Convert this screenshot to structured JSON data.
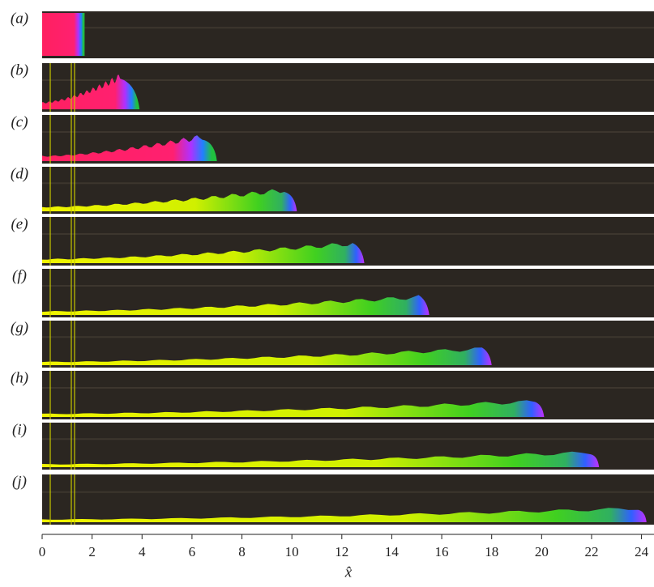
{
  "chart_data": {
    "type": "panels",
    "categories": [
      "(a)",
      "(b)",
      "(c)",
      "(d)",
      "(e)",
      "(f)",
      "(g)",
      "(h)",
      "(i)",
      "(j)"
    ],
    "values": [
      1.7,
      3.9,
      7.0,
      10.2,
      12.9,
      15.5,
      18.0,
      20.1,
      22.3,
      24.2
    ],
    "xlim": [
      0,
      24.5
    ],
    "xticks": [
      0,
      2,
      4,
      6,
      8,
      10,
      12,
      14,
      16,
      18,
      20,
      22,
      24
    ],
    "xlabel": "x̂"
  }
}
